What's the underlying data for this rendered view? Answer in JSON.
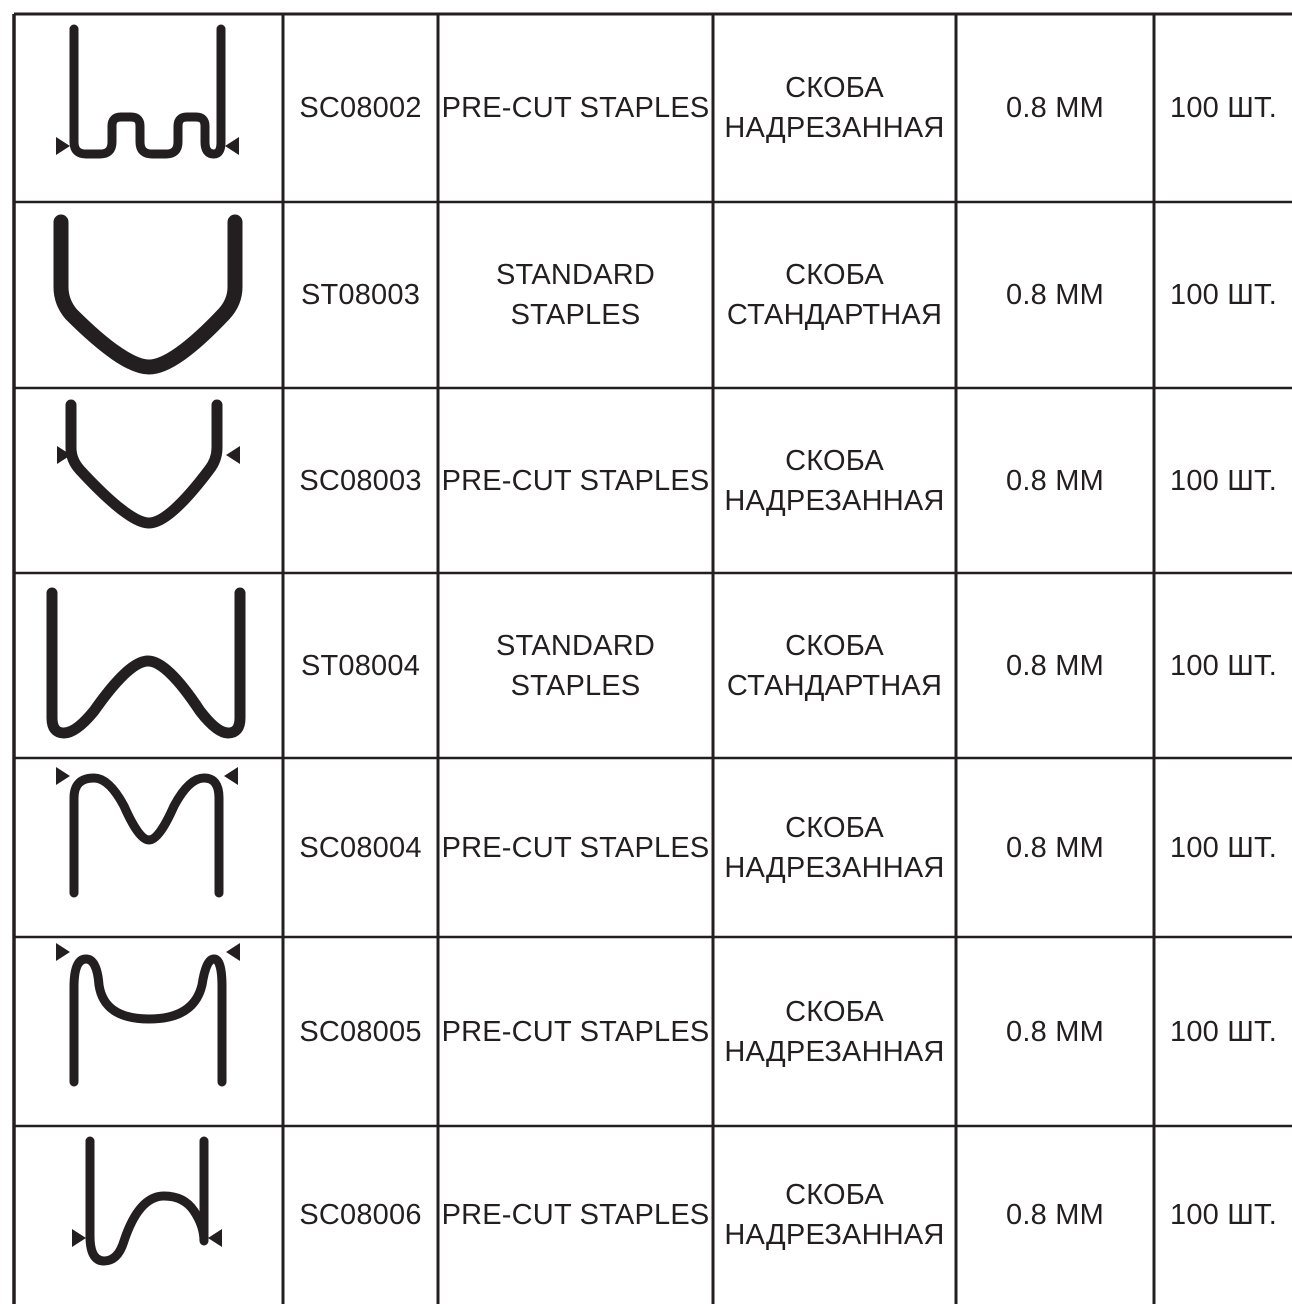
{
  "table": {
    "rows": [
      {
        "icon": "pre-cut-double-loop-staple-icon",
        "code": "SC08002",
        "name_en": [
          "PRE-CUT STAPLES"
        ],
        "name_ru": [
          "СКОБА",
          "НАДРЕЗАННАЯ"
        ],
        "size": "0.8 MM",
        "qty": "100 ШТ."
      },
      {
        "icon": "standard-v-staple-icon",
        "code": "ST08003",
        "name_en": [
          "STANDARD",
          "STAPLES"
        ],
        "name_ru": [
          "СКОБА",
          "СТАНДАРТНАЯ"
        ],
        "size": "0.8 MM",
        "qty": "100 ШТ."
      },
      {
        "icon": "pre-cut-v-staple-icon",
        "code": "SC08003",
        "name_en": [
          "PRE-CUT STAPLES"
        ],
        "name_ru": [
          "СКОБА",
          "НАДРЕЗАННАЯ"
        ],
        "size": "0.8 MM",
        "qty": "100 ШТ."
      },
      {
        "icon": "standard-wave-staple-icon",
        "code": "ST08004",
        "name_en": [
          "STANDARD",
          "STAPLES"
        ],
        "name_ru": [
          "СКОБА",
          "СТАНДАРТНАЯ"
        ],
        "size": "0.8 MM",
        "qty": "100 ШТ."
      },
      {
        "icon": "pre-cut-m-staple-icon",
        "code": "SC08004",
        "name_en": [
          "PRE-CUT STAPLES"
        ],
        "name_ru": [
          "СКОБА",
          "НАДРЕЗАННАЯ"
        ],
        "size": "0.8 MM",
        "qty": "100 ШТ."
      },
      {
        "icon": "pre-cut-inner-u-staple-icon",
        "code": "SC08005",
        "name_en": [
          "PRE-CUT STAPLES"
        ],
        "name_ru": [
          "СКОБА",
          "НАДРЕЗАННАЯ"
        ],
        "size": "0.8 MM",
        "qty": "100 ШТ."
      },
      {
        "icon": "pre-cut-s-curve-staple-icon",
        "code": "SC08006",
        "name_en": [
          "PRE-CUT STAPLES"
        ],
        "name_ru": [
          "СКОБА",
          "НАДРЕЗАННАЯ"
        ],
        "size": "0.8 MM",
        "qty": "100 ШТ."
      }
    ]
  },
  "colors": {
    "ink": "#231f20",
    "background": "#ffffff"
  }
}
